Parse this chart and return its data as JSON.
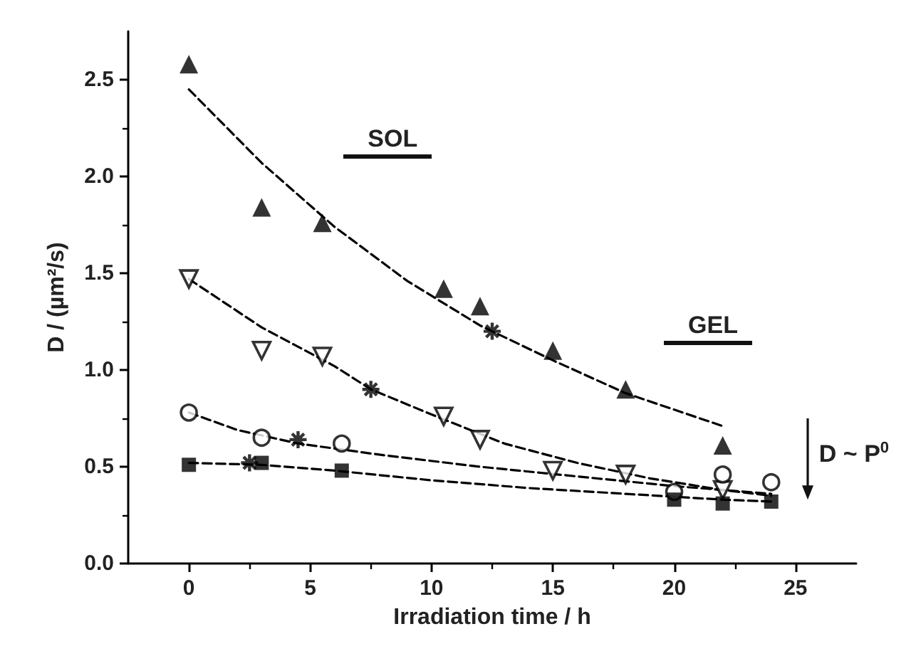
{
  "chart_data": {
    "type": "scatter",
    "xlabel": "Irradiation time / h",
    "ylabel": "D / (µm²/s)",
    "xlim": [
      -2.5,
      27.5
    ],
    "ylim": [
      0,
      2.75
    ],
    "xticks": [
      0,
      5,
      10,
      15,
      20,
      25
    ],
    "yticks": [
      {
        "value": 0,
        "label": "0.0"
      },
      0.5,
      {
        "value": 1,
        "label": "1.0"
      },
      1.5,
      {
        "value": 2,
        "label": "2.0"
      },
      2.5
    ],
    "grid": false,
    "annotations": [
      "SOL",
      "GEL",
      "D ~ P$^{0}$"
    ],
    "series": [
      {
        "type": "line",
        "color": "#000000",
        "marker": "none",
        "line_style": "dashed",
        "x": [
          0,
          3,
          6,
          9,
          12,
          15,
          18,
          22
        ],
        "values": [
          2.45,
          2.07,
          1.74,
          1.46,
          1.23,
          1.05,
          0.88,
          0.71
        ]
      },
      {
        "type": "line",
        "color": "#000000",
        "marker": "none",
        "line_style": "dashed",
        "x": [
          0,
          3,
          6,
          7.5,
          10,
          13,
          16,
          19,
          22,
          24
        ],
        "values": [
          1.47,
          1.22,
          1.02,
          0.9,
          0.77,
          0.62,
          0.52,
          0.44,
          0.38,
          0.35
        ]
      },
      {
        "type": "line",
        "color": "#000000",
        "marker": "none",
        "line_style": "dashed",
        "x": [
          0,
          2,
          4.5,
          8,
          12,
          16,
          20,
          24
        ],
        "values": [
          0.78,
          0.69,
          0.62,
          0.56,
          0.5,
          0.45,
          0.4,
          0.36
        ]
      },
      {
        "type": "line",
        "color": "#000000",
        "marker": "none",
        "line_style": "dashed",
        "x": [
          0,
          3,
          6,
          10,
          14,
          18,
          22,
          24
        ],
        "values": [
          0.52,
          0.51,
          0.48,
          0.43,
          0.39,
          0.36,
          0.33,
          0.32
        ]
      },
      {
        "color": "#000000",
        "marker": "triangle",
        "x": [
          0,
          3,
          5.5,
          10.5,
          12,
          15,
          18,
          22
        ],
        "values": [
          2.58,
          1.84,
          1.76,
          1.42,
          1.33,
          1.1,
          0.9,
          0.61
        ]
      },
      {
        "color": "#000000",
        "marker": "triangle-down",
        "x": [
          0,
          3,
          5.5,
          10.5,
          12,
          15,
          18,
          22
        ],
        "values": [
          1.47,
          1.1,
          1.07,
          0.76,
          0.64,
          0.48,
          0.46,
          0.38
        ]
      },
      {
        "color": "#000000",
        "marker": "circle",
        "x": [
          0,
          3,
          6.3,
          20,
          22,
          24
        ],
        "values": [
          0.78,
          0.65,
          0.62,
          0.37,
          0.46,
          0.42
        ]
      },
      {
        "color": "#000000",
        "marker": "square",
        "x": [
          0,
          3,
          6.3,
          20,
          22,
          24
        ],
        "values": [
          0.51,
          0.52,
          0.48,
          0.33,
          0.31,
          0.32
        ]
      },
      {
        "color": "#000000",
        "marker": "cross",
        "x": [
          2.5,
          4.5,
          7.5,
          12.5
        ],
        "values": [
          0.52,
          0.64,
          0.9,
          1.2
        ]
      }
    ]
  }
}
